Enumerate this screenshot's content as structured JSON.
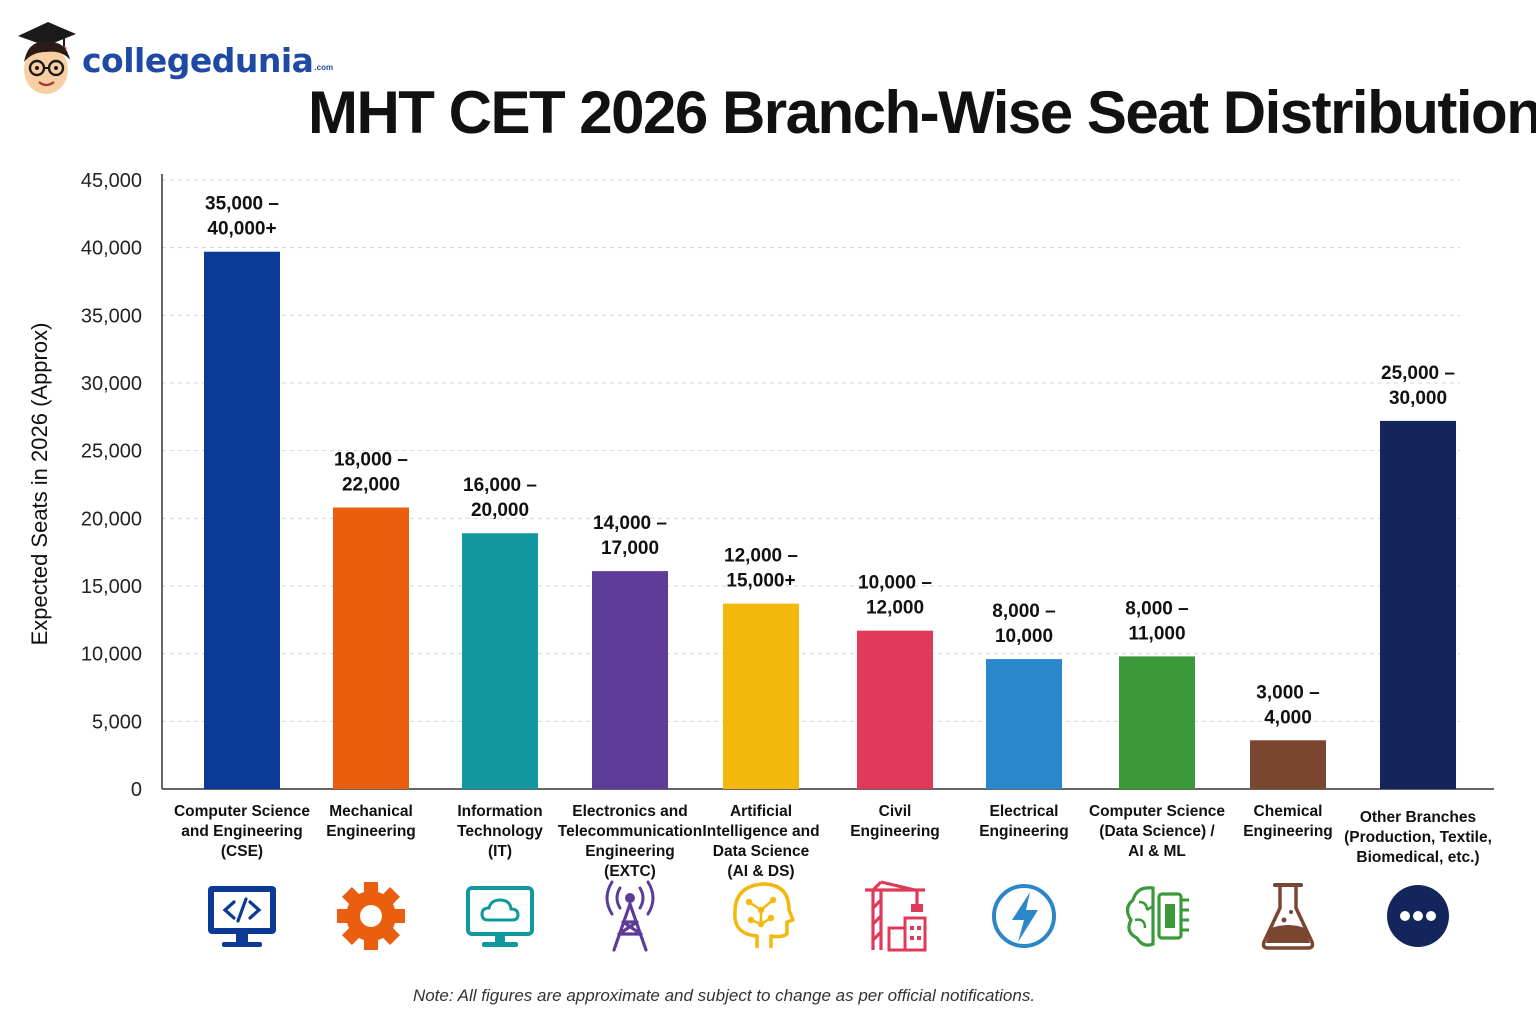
{
  "logo": {
    "text": "collegedunia",
    "suffix": ".com"
  },
  "title": "MHT CET 2026 Branch-Wise Seat Distribution",
  "note": "Note: All figures are approximate and subject to change as per official notifications.",
  "chart_data": {
    "type": "bar",
    "title": "MHT CET 2026 Branch-Wise Seat Distribution",
    "xlabel": "",
    "ylabel": "Expected Seats in 2026 (Approx)",
    "ylim": [
      0,
      45000
    ],
    "yticks": [
      0,
      5000,
      10000,
      15000,
      20000,
      25000,
      30000,
      35000,
      40000,
      45000
    ],
    "ytick_labels": [
      "0",
      "5,000",
      "10,000",
      "15,000",
      "20,000",
      "25,000",
      "30,000",
      "35,000",
      "40,000",
      "45,000"
    ],
    "grid": true,
    "categories": [
      [
        "Computer Science",
        "and Engineering",
        "(CSE)"
      ],
      [
        "Mechanical",
        "Engineering"
      ],
      [
        "Information",
        "Technology",
        "(IT)"
      ],
      [
        "Electronics and",
        "Telecommunication",
        "Engineering",
        "(EXTC)"
      ],
      [
        "Artificial",
        "Intelligence and",
        "Data Science",
        "(AI & DS)"
      ],
      [
        "Civil",
        "Engineering"
      ],
      [
        "Electrical",
        "Engineering"
      ],
      [
        "Computer Science",
        "(Data Science) /",
        "AI & ML"
      ],
      [
        "Chemical",
        "Engineering"
      ],
      [
        "Other Branches",
        "(Production, Textile,",
        "Biomedical, etc.)"
      ]
    ],
    "values": [
      39700,
      20800,
      18900,
      16100,
      13700,
      11700,
      9600,
      9800,
      3600,
      27200
    ],
    "data_labels": [
      [
        "35,000 –",
        "40,000+"
      ],
      [
        "18,000 –",
        "22,000"
      ],
      [
        "16,000 –",
        "20,000"
      ],
      [
        "14,000 –",
        "17,000"
      ],
      [
        "12,000 –",
        "15,000+"
      ],
      [
        "10,000 –",
        "12,000"
      ],
      [
        "8,000 –",
        "10,000"
      ],
      [
        "8,000 –",
        "11,000"
      ],
      [
        "3,000 –",
        "4,000"
      ],
      [
        "25,000 –",
        "30,000"
      ]
    ],
    "colors": [
      "#0b3a96",
      "#ea5f0f",
      "#12999f",
      "#5c3c98",
      "#f2b80c",
      "#df3a5a",
      "#2b88c8",
      "#3a9a3a",
      "#7a4630",
      "#13255a"
    ],
    "icons": [
      "code-monitor-icon",
      "gear-icon",
      "cloud-monitor-icon",
      "antenna-tower-icon",
      "ai-head-icon",
      "construction-crane-icon",
      "lightning-bolt-icon",
      "brain-chip-icon",
      "flask-icon",
      "more-dots-icon"
    ]
  }
}
